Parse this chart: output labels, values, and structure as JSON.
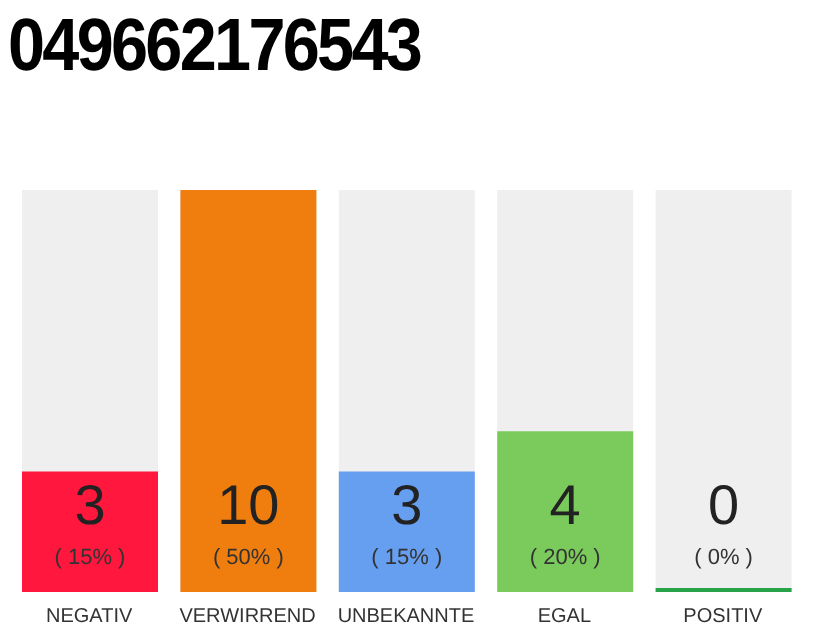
{
  "chart_data": {
    "type": "bar",
    "title": "049662176543",
    "categories": [
      "NEGATIV",
      "VERWIRREND",
      "UNBEKANNTE",
      "EGAL",
      "POSITIV"
    ],
    "values": [
      3,
      10,
      3,
      4,
      0
    ],
    "colors": [
      "#ff173d",
      "#f07e0e",
      "#669ef0",
      "#7bca5c",
      "#27a348"
    ],
    "data_labels": true,
    "annotations": [
      "( 15% )",
      "( 50% )",
      "( 15% )",
      "( 20% )",
      "( 0% )"
    ],
    "grid": false,
    "legend": false
  }
}
